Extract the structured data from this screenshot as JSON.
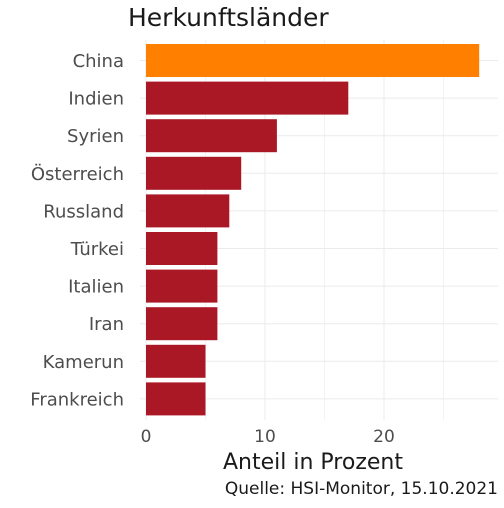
{
  "chart_data": {
    "type": "bar",
    "orientation": "horizontal",
    "title": "Herkunftsländer",
    "xlabel": "Anteil in Prozent",
    "ylabel": "",
    "caption": "Quelle: HSI-Monitor, 15.10.2021",
    "categories": [
      "China",
      "Indien",
      "Syrien",
      "Österreich",
      "Russland",
      "Türkei",
      "Italien",
      "Iran",
      "Kamerun",
      "Frankreich"
    ],
    "values": [
      28,
      17,
      11,
      8,
      7,
      6,
      6,
      6,
      5,
      5
    ],
    "highlight_index": 0,
    "xlim": [
      0,
      29
    ],
    "xticks": [
      0,
      10,
      20
    ],
    "grid": true,
    "colors": {
      "bar": "#AA1826",
      "highlight": "#FF7F00",
      "grid": "#EBEBEB",
      "text": "#1A1A1A",
      "tick_text": "#4D4D4D"
    }
  }
}
